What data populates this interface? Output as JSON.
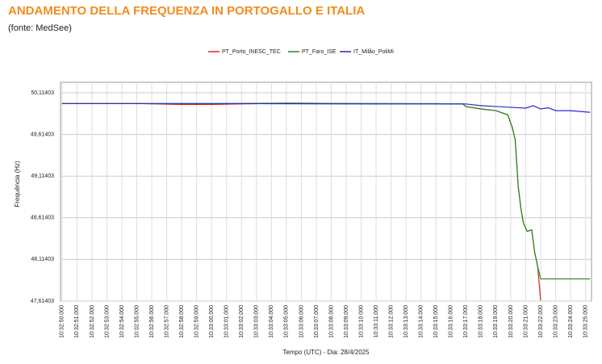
{
  "chart_data": {
    "type": "line",
    "title": "ANDAMENTO DELLA FREQUENZA IN PORTOGALLO E ITALIA",
    "subtitle": "(fonte: MedSee)",
    "x_label": "Tempo (UTC) - Dia: 28/4/2025",
    "y_label": "Frequência (Hz)",
    "grid": true,
    "legend": "top",
    "xlim": [
      37969.9,
      38005.4
    ],
    "ylim": [
      47.61403,
      50.24
    ],
    "yticks": [
      {
        "value": 47.61403,
        "label": "47,61403"
      },
      {
        "value": 48.11403,
        "label": "48,11403"
      },
      {
        "value": 48.61403,
        "label": "48,61403"
      },
      {
        "value": 49.11403,
        "label": "49,11403"
      },
      {
        "value": 49.61403,
        "label": "49,61403"
      },
      {
        "value": 50.11403,
        "label": "50,11403"
      }
    ],
    "xticks": [
      {
        "value": 37970,
        "label": "10:32:50.000"
      },
      {
        "value": 37971,
        "label": "10:32:51.000"
      },
      {
        "value": 37972,
        "label": "10:32:52.000"
      },
      {
        "value": 37973,
        "label": "10:32:53.000"
      },
      {
        "value": 37974,
        "label": "10:32:54.000"
      },
      {
        "value": 37975,
        "label": "10:32:55.000"
      },
      {
        "value": 37976,
        "label": "10:32:56.000"
      },
      {
        "value": 37977,
        "label": "10:32:57.000"
      },
      {
        "value": 37978,
        "label": "10:32:58.000"
      },
      {
        "value": 37979,
        "label": "10:32:59.000"
      },
      {
        "value": 37980,
        "label": "10:33:00.000"
      },
      {
        "value": 37981,
        "label": "10:33:01.000"
      },
      {
        "value": 37982,
        "label": "10:33:02.000"
      },
      {
        "value": 37983,
        "label": "10:33:03.000"
      },
      {
        "value": 37984,
        "label": "10:33:04.000"
      },
      {
        "value": 37985,
        "label": "10:33:05.000"
      },
      {
        "value": 37986,
        "label": "10:33:06.000"
      },
      {
        "value": 37987,
        "label": "10:33:07.000"
      },
      {
        "value": 37988,
        "label": "10:33:08.000"
      },
      {
        "value": 37989,
        "label": "10:33:09.000"
      },
      {
        "value": 37990,
        "label": "10:33:10.000"
      },
      {
        "value": 37991,
        "label": "10:33:11.000"
      },
      {
        "value": 37992,
        "label": "10:33:12.000"
      },
      {
        "value": 37993,
        "label": "10:33:13.000"
      },
      {
        "value": 37994,
        "label": "10:33:14.000"
      },
      {
        "value": 37995,
        "label": "10:33:15.000"
      },
      {
        "value": 37996,
        "label": "10:33:16.000"
      },
      {
        "value": 37997,
        "label": "10:33:17.000"
      },
      {
        "value": 37998,
        "label": "10:33:18.000"
      },
      {
        "value": 37999,
        "label": "10:33:19.000"
      },
      {
        "value": 38000,
        "label": "10:33:20.000"
      },
      {
        "value": 38001,
        "label": "10:33:21.000"
      },
      {
        "value": 38002,
        "label": "10:33:22.000"
      },
      {
        "value": 38003,
        "label": "10:33:23.000"
      },
      {
        "value": 38004,
        "label": "10:33:24.000"
      },
      {
        "value": 38005,
        "label": "10:33:25.000"
      }
    ],
    "series": [
      {
        "name": "PT_Porto_INESC_TEC",
        "color": "#e02020",
        "x": [
          37970,
          37975,
          37978,
          37980,
          37985,
          37990,
          37995,
          37996.8,
          37997,
          37998,
          37999,
          37999.8,
          38000.1,
          38000.3,
          38000.5,
          38000.7,
          38000.85,
          38001.1,
          38001.4,
          38001.6,
          38001.8,
          38002.0
        ],
        "values": [
          49.985,
          49.985,
          49.975,
          49.975,
          49.99,
          49.985,
          49.983,
          49.98,
          49.95,
          49.92,
          49.9,
          49.85,
          49.7,
          49.55,
          48.99,
          48.7,
          48.55,
          48.45,
          48.47,
          48.2,
          48.03,
          47.62
        ]
      },
      {
        "name": "PT_Faro_ISE",
        "color": "#1e8a1e",
        "x": [
          37970,
          37975,
          37980,
          37985,
          37990,
          37995,
          37996.8,
          37997,
          37998,
          37999,
          37999.8,
          38000.1,
          38000.3,
          38000.5,
          38000.7,
          38000.85,
          38001.1,
          38001.4,
          38001.6,
          38001.8,
          38002.0,
          38005.3
        ],
        "values": [
          49.985,
          49.985,
          49.985,
          49.99,
          49.985,
          49.983,
          49.98,
          49.95,
          49.92,
          49.9,
          49.85,
          49.7,
          49.55,
          48.99,
          48.7,
          48.55,
          48.45,
          48.47,
          48.2,
          48.03,
          47.88,
          47.88
        ]
      },
      {
        "name": "IT_Milão_PoliMi",
        "color": "#2a2ad0",
        "x": [
          37970,
          37980,
          37990,
          37997,
          37998,
          37999,
          38000,
          38001,
          38001.5,
          38002,
          38002.5,
          38003,
          38004,
          38005.3
        ],
        "values": [
          49.985,
          49.985,
          49.98,
          49.98,
          49.96,
          49.95,
          49.94,
          49.93,
          49.96,
          49.92,
          49.935,
          49.9,
          49.9,
          49.88
        ]
      }
    ]
  }
}
